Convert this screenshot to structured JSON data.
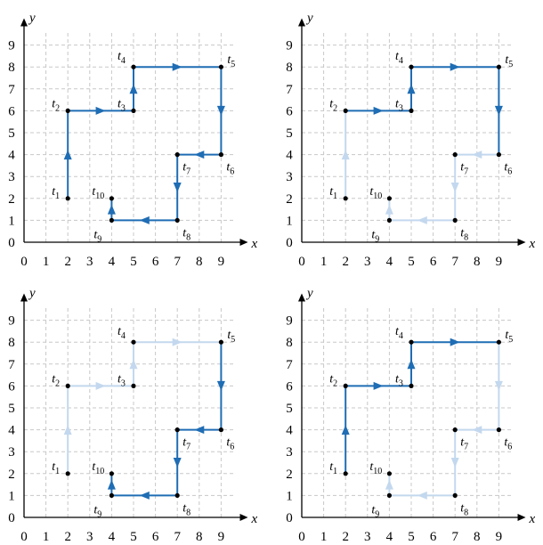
{
  "colors": {
    "active": "#1f6db4",
    "faded": "#c3d8ee",
    "point": "#000000",
    "grid": "#c8c8c8"
  },
  "axes": {
    "x_label": "x",
    "y_label": "y",
    "x_ticks": [
      "0",
      "1",
      "2",
      "3",
      "4",
      "5",
      "6",
      "7",
      "8",
      "9"
    ],
    "y_ticks": [
      "0",
      "1",
      "2",
      "3",
      "4",
      "5",
      "6",
      "7",
      "8",
      "9"
    ]
  },
  "points": [
    {
      "label": "t",
      "sub": "1",
      "x": 2,
      "y": 2
    },
    {
      "label": "t",
      "sub": "2",
      "x": 2,
      "y": 6
    },
    {
      "label": "t",
      "sub": "3",
      "x": 5,
      "y": 6
    },
    {
      "label": "t",
      "sub": "4",
      "x": 5,
      "y": 8
    },
    {
      "label": "t",
      "sub": "5",
      "x": 9,
      "y": 8
    },
    {
      "label": "t",
      "sub": "6",
      "x": 9,
      "y": 4
    },
    {
      "label": "t",
      "sub": "7",
      "x": 7,
      "y": 4
    },
    {
      "label": "t",
      "sub": "8",
      "x": 7,
      "y": 1
    },
    {
      "label": "t",
      "sub": "9",
      "x": 4,
      "y": 1
    },
    {
      "label": "t",
      "sub": "10",
      "x": 4,
      "y": 2
    }
  ],
  "panels": [
    {
      "name": "panel-top-left",
      "segments": [
        "active",
        "active",
        "active",
        "active",
        "active",
        "active",
        "active",
        "active",
        "active"
      ]
    },
    {
      "name": "panel-top-right",
      "segments": [
        "faded",
        "active",
        "active",
        "active",
        "active",
        "faded",
        "faded",
        "faded",
        "faded"
      ]
    },
    {
      "name": "panel-bottom-left",
      "segments": [
        "faded",
        "faded",
        "faded",
        "faded",
        "active",
        "active",
        "active",
        "active",
        "active"
      ]
    },
    {
      "name": "panel-bottom-right",
      "segments": [
        "active",
        "active",
        "active",
        "active",
        "faded",
        "faded",
        "faded",
        "faded",
        "faded"
      ]
    }
  ]
}
